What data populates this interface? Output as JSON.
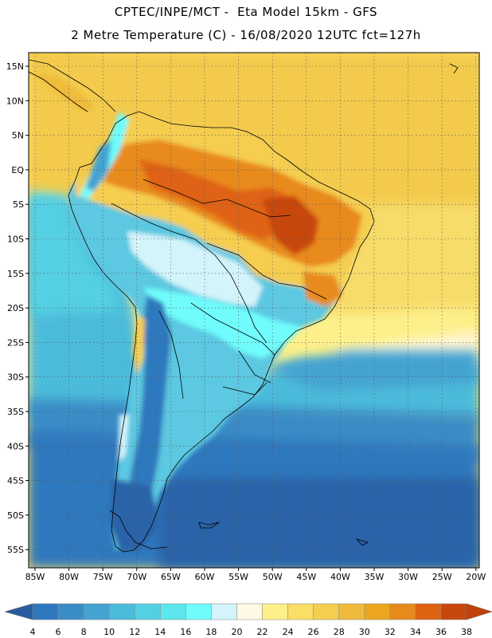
{
  "header": {
    "line1": "CPTEC/INPE/MCT -  Eta Model 15km - GFS",
    "line2": "2 Metre Temperature (C) - 16/08/2020 12UTC fct=127h"
  },
  "map": {
    "lat_labels": [
      "15N",
      "10N",
      "5N",
      "EQ",
      "5S",
      "10S",
      "15S",
      "20S",
      "25S",
      "30S",
      "35S",
      "40S",
      "45S",
      "50S",
      "55S"
    ],
    "lon_labels": [
      "85W",
      "80W",
      "75W",
      "70W",
      "65W",
      "60W",
      "55W",
      "50W",
      "45W",
      "40W",
      "35W",
      "30W",
      "25W",
      "20W"
    ]
  },
  "colorbar": {
    "labels": [
      "4",
      "6",
      "8",
      "10",
      "12",
      "14",
      "16",
      "18",
      "20",
      "22",
      "24",
      "26",
      "28",
      "30",
      "32",
      "34",
      "36",
      "38"
    ],
    "colors": [
      "#2a64a8",
      "#2f78bd",
      "#3a8cc6",
      "#45a3d2",
      "#4bbbdb",
      "#55d0e2",
      "#5be7ec",
      "#6ffcfc",
      "#d4f4fb",
      "#fef8e4",
      "#fdf08a",
      "#fbde65",
      "#f5ce4f",
      "#efbb3a",
      "#eca51e",
      "#e88a1a",
      "#df6213",
      "#c8470c"
    ],
    "low_color": "#2a5b9f",
    "high_color": "#c0410b"
  }
}
